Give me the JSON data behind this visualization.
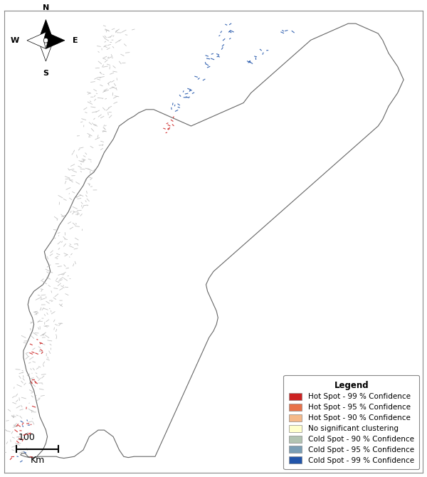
{
  "legend_title": "Legend",
  "legend_labels": [
    "Hot Spot - 99 % Confidence",
    "Hot Spot - 95 % Confidence",
    "Hot Spot - 90 % Confidence",
    "No significant clustering",
    "Cold Spot - 90 % Confidence",
    "Cold Spot - 95 % Confidence",
    "Cold Spot - 99 % Confidence"
  ],
  "legend_colors": [
    "#cc2222",
    "#e8724a",
    "#f5b98a",
    "#ffffcc",
    "#b2c4b2",
    "#7a9eb5",
    "#2255aa"
  ],
  "background_color": "#ffffff",
  "norway_fill": "#ffffff",
  "norway_edge": "#666666",
  "scale_bar_label": "100",
  "scale_bar_unit": "Km",
  "compass_labels": [
    "N",
    "E",
    "S",
    "W"
  ],
  "figsize": [
    6.0,
    6.7
  ],
  "dpi": 100,
  "map_xlim": [
    3.5,
    31.5
  ],
  "map_ylim": [
    57.5,
    71.5
  ]
}
